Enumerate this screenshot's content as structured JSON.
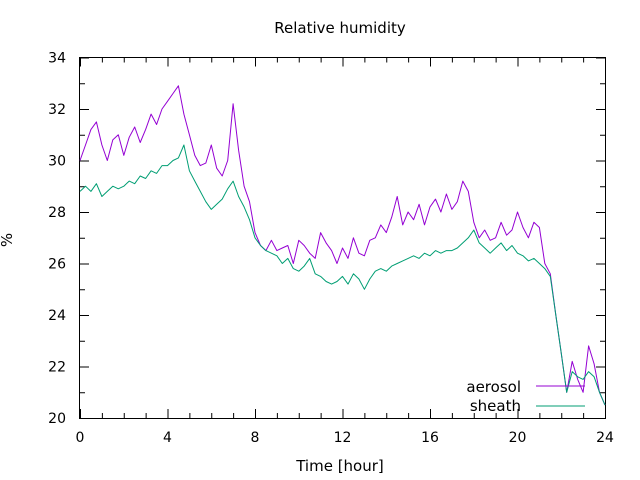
{
  "chart_data": {
    "type": "line",
    "title": "Relative humidity",
    "xlabel": "Time [hour]",
    "ylabel": "%",
    "xlim": [
      0,
      24
    ],
    "ylim": [
      20,
      34
    ],
    "xticks": [
      "0",
      "4",
      "8",
      "12",
      "16",
      "20",
      "24"
    ],
    "yticks": [
      "20",
      "22",
      "24",
      "26",
      "28",
      "30",
      "32",
      "34"
    ],
    "grid": false,
    "legend_position": "bottom-right",
    "series": [
      {
        "name": "aerosol",
        "color": "#9400d3",
        "x": [
          0.0,
          0.25,
          0.5,
          0.75,
          1.0,
          1.25,
          1.5,
          1.75,
          2.0,
          2.25,
          2.5,
          2.75,
          3.0,
          3.25,
          3.5,
          3.75,
          4.0,
          4.25,
          4.5,
          4.75,
          5.0,
          5.25,
          5.5,
          5.75,
          6.0,
          6.25,
          6.5,
          6.75,
          7.0,
          7.25,
          7.5,
          7.75,
          8.0,
          8.25,
          8.5,
          8.75,
          9.0,
          9.25,
          9.5,
          9.75,
          10.0,
          10.25,
          10.5,
          10.75,
          11.0,
          11.25,
          11.5,
          11.75,
          12.0,
          12.25,
          12.5,
          12.75,
          13.0,
          13.25,
          13.5,
          13.75,
          14.0,
          14.25,
          14.5,
          14.75,
          15.0,
          15.25,
          15.5,
          15.75,
          16.0,
          16.25,
          16.5,
          16.75,
          17.0,
          17.25,
          17.5,
          17.75,
          18.0,
          18.25,
          18.5,
          18.75,
          19.0,
          19.25,
          19.5,
          19.75,
          20.0,
          20.25,
          20.5,
          20.75,
          21.0,
          21.25,
          21.5,
          21.75,
          22.0,
          22.25,
          22.5,
          22.75,
          23.0,
          23.25,
          23.5,
          23.75,
          24.0
        ],
        "y": [
          30.0,
          30.6,
          31.2,
          31.5,
          30.6,
          30.0,
          30.8,
          31.0,
          30.2,
          30.9,
          31.3,
          30.7,
          31.2,
          31.8,
          31.4,
          32.0,
          32.3,
          32.6,
          32.9,
          31.8,
          31.0,
          30.2,
          29.8,
          29.9,
          30.6,
          29.7,
          29.4,
          30.0,
          32.2,
          30.4,
          29.0,
          28.4,
          27.2,
          26.7,
          26.5,
          26.9,
          26.5,
          26.6,
          26.7,
          26.0,
          26.9,
          26.7,
          26.4,
          26.2,
          27.2,
          26.8,
          26.5,
          26.0,
          26.6,
          26.2,
          27.0,
          26.4,
          26.3,
          26.9,
          27.0,
          27.5,
          27.2,
          27.8,
          28.6,
          27.5,
          28.0,
          27.7,
          28.3,
          27.5,
          28.2,
          28.5,
          28.0,
          28.7,
          28.1,
          28.4,
          29.2,
          28.8,
          27.6,
          27.0,
          27.3,
          26.9,
          27.0,
          27.6,
          27.1,
          27.3,
          28.0,
          27.4,
          27.0,
          27.6,
          27.4,
          26.0,
          25.6,
          24.0,
          22.5,
          21.0,
          22.2,
          21.5,
          21.0,
          22.8,
          22.1,
          21.0,
          20.5
        ]
      },
      {
        "name": "sheath",
        "color": "#009e73",
        "x": [
          0.0,
          0.25,
          0.5,
          0.75,
          1.0,
          1.25,
          1.5,
          1.75,
          2.0,
          2.25,
          2.5,
          2.75,
          3.0,
          3.25,
          3.5,
          3.75,
          4.0,
          4.25,
          4.5,
          4.75,
          5.0,
          5.25,
          5.5,
          5.75,
          6.0,
          6.25,
          6.5,
          6.75,
          7.0,
          7.25,
          7.5,
          7.75,
          8.0,
          8.25,
          8.5,
          8.75,
          9.0,
          9.25,
          9.5,
          9.75,
          10.0,
          10.25,
          10.5,
          10.75,
          11.0,
          11.25,
          11.5,
          11.75,
          12.0,
          12.25,
          12.5,
          12.75,
          13.0,
          13.25,
          13.5,
          13.75,
          14.0,
          14.25,
          14.5,
          14.75,
          15.0,
          15.25,
          15.5,
          15.75,
          16.0,
          16.25,
          16.5,
          16.75,
          17.0,
          17.25,
          17.5,
          17.75,
          18.0,
          18.25,
          18.5,
          18.75,
          19.0,
          19.25,
          19.5,
          19.75,
          20.0,
          20.25,
          20.5,
          20.75,
          21.0,
          21.25,
          21.5,
          21.75,
          22.0,
          22.25,
          22.5,
          22.75,
          23.0,
          23.25,
          23.5,
          23.75,
          24.0
        ],
        "y": [
          28.8,
          29.0,
          28.8,
          29.1,
          28.6,
          28.8,
          29.0,
          28.9,
          29.0,
          29.2,
          29.1,
          29.4,
          29.3,
          29.6,
          29.5,
          29.8,
          29.8,
          30.0,
          30.1,
          30.6,
          29.6,
          29.2,
          28.8,
          28.4,
          28.1,
          28.3,
          28.5,
          28.9,
          29.2,
          28.6,
          28.2,
          27.7,
          27.0,
          26.7,
          26.5,
          26.4,
          26.3,
          26.0,
          26.2,
          25.8,
          25.7,
          25.9,
          26.2,
          25.6,
          25.5,
          25.3,
          25.2,
          25.3,
          25.5,
          25.2,
          25.6,
          25.4,
          25.0,
          25.4,
          25.7,
          25.8,
          25.7,
          25.9,
          26.0,
          26.1,
          26.2,
          26.3,
          26.2,
          26.4,
          26.3,
          26.5,
          26.4,
          26.5,
          26.5,
          26.6,
          26.8,
          27.0,
          27.3,
          26.8,
          26.6,
          26.4,
          26.6,
          26.8,
          26.5,
          26.7,
          26.4,
          26.3,
          26.1,
          26.2,
          26.0,
          25.8,
          25.5,
          24.0,
          22.5,
          21.0,
          21.8,
          21.6,
          21.5,
          21.8,
          21.6,
          21.0,
          20.5
        ]
      }
    ]
  }
}
